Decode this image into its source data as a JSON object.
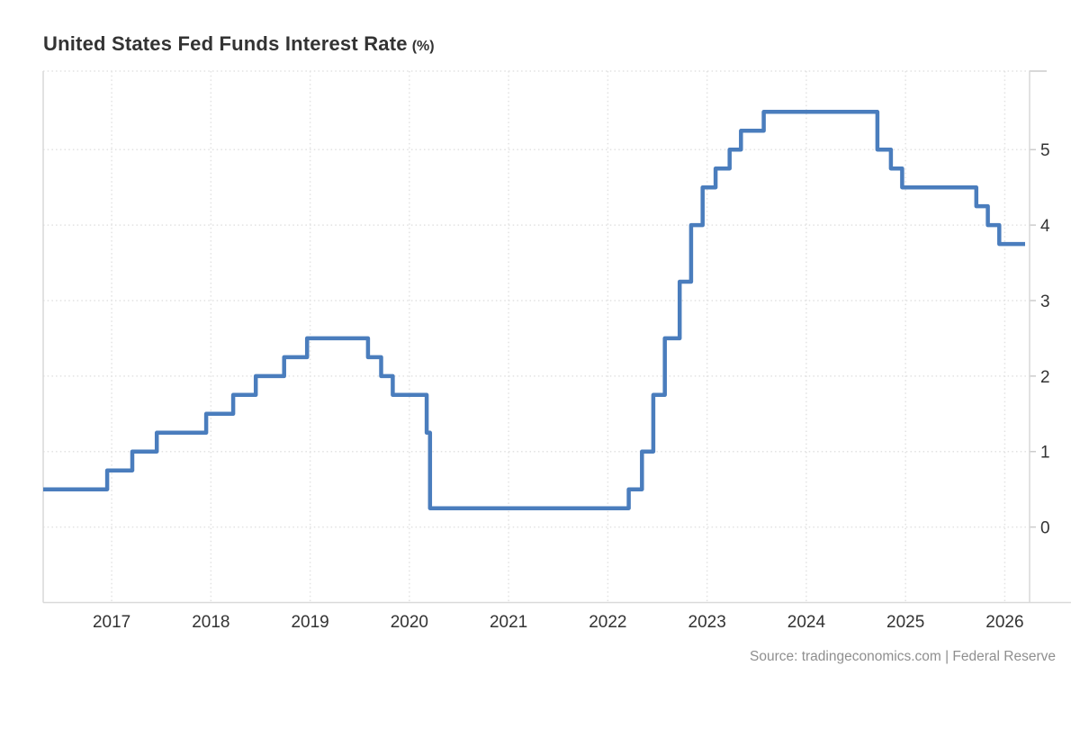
{
  "header": {
    "title": "United States Fed Funds Interest Rate",
    "unit": "(%)"
  },
  "footer": {
    "source": "Source: tradingeconomics.com | Federal Reserve"
  },
  "colors": {
    "line": "#4a7dbd",
    "grid": "#e2e2e2",
    "axis": "#d9d9d9",
    "tick": "#cccccc",
    "label_text": "#333333",
    "title_text": "#333333",
    "source_text": "#8f8f8f",
    "background": "#ffffff"
  },
  "chart_data": {
    "type": "line",
    "subtype": "step-after",
    "title": "United States Fed Funds Interest Rate (%)",
    "xlabel": "",
    "ylabel": "",
    "grid": "dotted",
    "legend": false,
    "y_axis_side": "right",
    "x_ticks": [
      2017,
      2018,
      2019,
      2020,
      2021,
      2022,
      2023,
      2024,
      2025,
      2026
    ],
    "y_ticks": [
      0,
      1,
      2,
      3,
      4,
      5
    ],
    "x_range": [
      2016.31,
      2026.25
    ],
    "y_range": [
      -1,
      6.04
    ],
    "series": [
      {
        "name": "Fed Funds Rate (%)",
        "end_date": "2026-03-15",
        "observations": [
          {
            "date": "2016-04-01",
            "rate": 0.5
          },
          {
            "date": "2016-12-15",
            "rate": 0.75
          },
          {
            "date": "2017-03-16",
            "rate": 1.0
          },
          {
            "date": "2017-06-15",
            "rate": 1.25
          },
          {
            "date": "2017-12-14",
            "rate": 1.5
          },
          {
            "date": "2018-03-22",
            "rate": 1.75
          },
          {
            "date": "2018-06-14",
            "rate": 2.0
          },
          {
            "date": "2018-09-27",
            "rate": 2.25
          },
          {
            "date": "2018-12-20",
            "rate": 2.5
          },
          {
            "date": "2019-08-01",
            "rate": 2.25
          },
          {
            "date": "2019-09-19",
            "rate": 2.0
          },
          {
            "date": "2019-10-31",
            "rate": 1.75
          },
          {
            "date": "2020-03-04",
            "rate": 1.25
          },
          {
            "date": "2020-03-16",
            "rate": 0.25
          },
          {
            "date": "2022-03-17",
            "rate": 0.5
          },
          {
            "date": "2022-05-05",
            "rate": 1.0
          },
          {
            "date": "2022-06-16",
            "rate": 1.75
          },
          {
            "date": "2022-07-28",
            "rate": 2.5
          },
          {
            "date": "2022-09-22",
            "rate": 3.25
          },
          {
            "date": "2022-11-03",
            "rate": 4.0
          },
          {
            "date": "2022-12-15",
            "rate": 4.5
          },
          {
            "date": "2023-02-02",
            "rate": 4.75
          },
          {
            "date": "2023-03-23",
            "rate": 5.0
          },
          {
            "date": "2023-05-04",
            "rate": 5.25
          },
          {
            "date": "2023-07-27",
            "rate": 5.5
          },
          {
            "date": "2024-09-19",
            "rate": 5.0
          },
          {
            "date": "2024-11-08",
            "rate": 4.75
          },
          {
            "date": "2024-12-19",
            "rate": 4.5
          },
          {
            "date": "2025-09-18",
            "rate": 4.25
          },
          {
            "date": "2025-10-30",
            "rate": 4.0
          },
          {
            "date": "2025-12-11",
            "rate": 3.75
          }
        ]
      }
    ]
  }
}
